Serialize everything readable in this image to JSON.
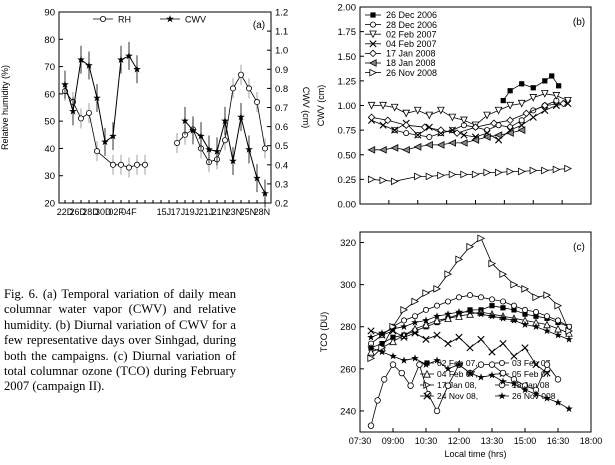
{
  "caption": "Fig. 6. (a) Temporal variation of daily mean columnar water vapor (CWV) and relative humidity. (b) Diurnal variation of CWV for a few representative days over Sinhgad, during both the campaigns. (c) Diurnal variation of total columnar ozone (TCO) during February 2007 (campaign II).",
  "chart_data": [
    {
      "panel_label": "(a)",
      "type": "line",
      "xlabel": "",
      "ylabel": "Relative humidity (%)",
      "y2label": "CWV (cm)",
      "ylim": [
        20,
        90
      ],
      "y2lim": [
        0.2,
        1.2
      ],
      "yticks": [
        20,
        30,
        40,
        50,
        60,
        70,
        80,
        90
      ],
      "y2ticks": [
        0.2,
        0.3,
        0.4,
        0.5,
        0.6,
        0.7,
        0.8,
        0.9,
        1.0,
        1.1,
        1.2
      ],
      "tick_labels": [
        "22D",
        "26D",
        "28D",
        "30D",
        "02F",
        "04F",
        "",
        "15J",
        "17J",
        "19J",
        "21J",
        "21N",
        "23N",
        "25N",
        "28N"
      ],
      "legend": [
        "RH",
        "CWV"
      ],
      "series": [
        {
          "name": "RH",
          "axis": "left",
          "marker": "circle",
          "x": [
            0,
            1,
            2,
            3,
            4,
            6,
            7,
            8,
            9,
            10,
            14,
            15,
            16,
            17,
            18,
            19,
            20,
            21,
            22,
            23,
            24,
            25
          ],
          "y": [
            61,
            57,
            51,
            53,
            39,
            34,
            34,
            33,
            34,
            34,
            42,
            45,
            47,
            40,
            35,
            36,
            43,
            62,
            67,
            62,
            57,
            40
          ]
        },
        {
          "name": "CWV",
          "axis": "right",
          "marker": "star",
          "x": [
            0,
            1,
            2,
            3,
            4,
            5,
            6,
            7,
            8,
            9,
            15,
            16,
            17,
            18,
            19,
            20,
            21,
            22,
            23,
            24,
            25
          ],
          "y": [
            0.82,
            0.68,
            0.95,
            0.92,
            0.75,
            0.52,
            0.55,
            0.95,
            0.97,
            0.9,
            0.63,
            0.58,
            0.55,
            0.48,
            0.47,
            0.63,
            0.42,
            0.65,
            0.48,
            0.33,
            0.25
          ]
        }
      ]
    },
    {
      "panel_label": "(b)",
      "type": "line",
      "xlabel": "",
      "ylabel": "CWV (cm)",
      "ylim": [
        0.0,
        2.0
      ],
      "yticks": [
        0.0,
        0.25,
        0.5,
        0.75,
        1.0,
        1.25,
        1.5,
        1.75,
        2.0
      ],
      "series": [
        {
          "name": "26 Dec 2006",
          "marker": "square",
          "x": [
            0.62,
            0.65,
            0.7,
            0.75,
            0.8,
            0.83,
            0.86
          ],
          "y": [
            1.05,
            1.15,
            1.22,
            1.18,
            1.25,
            1.3,
            1.2
          ]
        },
        {
          "name": "28 Dec 2006",
          "marker": "circle",
          "x": [
            0.15,
            0.2,
            0.25,
            0.3,
            0.35,
            0.4,
            0.45,
            0.5,
            0.55,
            0.6,
            0.65,
            0.7,
            0.75,
            0.8,
            0.85
          ],
          "y": [
            0.75,
            0.72,
            0.7,
            0.68,
            0.72,
            0.75,
            0.8,
            0.78,
            0.75,
            0.8,
            0.78,
            0.85,
            0.95,
            1.0,
            1.05
          ]
        },
        {
          "name": "02 Feb 2007",
          "marker": "triangle-down",
          "x": [
            0.05,
            0.1,
            0.15,
            0.2,
            0.25,
            0.3,
            0.35,
            0.4,
            0.45,
            0.5,
            0.55,
            0.6,
            0.65,
            0.7,
            0.75,
            0.8,
            0.85,
            0.9
          ],
          "y": [
            1.0,
            1.0,
            0.98,
            0.92,
            0.95,
            0.9,
            0.95,
            0.88,
            0.85,
            0.8,
            0.9,
            0.95,
            1.0,
            1.02,
            1.08,
            1.12,
            1.1,
            1.05
          ]
        },
        {
          "name": "04 Feb 2007",
          "marker": "x",
          "x": [
            0.05,
            0.1,
            0.15,
            0.2,
            0.25,
            0.3,
            0.35,
            0.4,
            0.45,
            0.5,
            0.55,
            0.6,
            0.65,
            0.7,
            0.75,
            0.8,
            0.85,
            0.9
          ],
          "y": [
            0.85,
            0.8,
            0.75,
            0.82,
            0.7,
            0.78,
            0.72,
            0.75,
            0.7,
            0.68,
            0.72,
            0.65,
            0.75,
            0.8,
            0.88,
            0.95,
            1.0,
            1.02
          ]
        },
        {
          "name": "17 Jan 2008",
          "marker": "diamond",
          "x": [
            0.05,
            0.12,
            0.2,
            0.28,
            0.35,
            0.42,
            0.5,
            0.58,
            0.65,
            0.72,
            0.8,
            0.88
          ],
          "y": [
            0.88,
            0.85,
            0.8,
            0.78,
            0.75,
            0.72,
            0.78,
            0.82,
            0.85,
            0.92,
            1.0,
            1.02
          ]
        },
        {
          "name": "18 Jan 2008",
          "marker": "triangle-left",
          "x": [
            0.05,
            0.1,
            0.15,
            0.2,
            0.25,
            0.3,
            0.35,
            0.4,
            0.45,
            0.5,
            0.55,
            0.6,
            0.65,
            0.7
          ],
          "y": [
            0.55,
            0.55,
            0.57,
            0.55,
            0.58,
            0.6,
            0.6,
            0.62,
            0.62,
            0.65,
            0.68,
            0.7,
            0.72,
            0.75
          ]
        },
        {
          "name": "26 Nov 2008",
          "marker": "triangle-right",
          "x": [
            0.05,
            0.1,
            0.15,
            0.25,
            0.3,
            0.35,
            0.4,
            0.45,
            0.5,
            0.55,
            0.6,
            0.65,
            0.7,
            0.75,
            0.8,
            0.85,
            0.9
          ],
          "y": [
            0.25,
            0.24,
            0.23,
            0.28,
            0.28,
            0.29,
            0.3,
            0.3,
            0.3,
            0.32,
            0.32,
            0.33,
            0.33,
            0.34,
            0.34,
            0.35,
            0.36
          ]
        }
      ]
    },
    {
      "panel_label": "(c)",
      "type": "line",
      "xlabel": "Local time (hrs)",
      "ylabel": "TCO (DU)",
      "ylim": [
        230,
        325
      ],
      "yticks": [
        240,
        260,
        280,
        300,
        320
      ],
      "xticks": [
        "07:30",
        "09:00",
        "10:30",
        "12:00",
        "13:30",
        "15:00",
        "16:30",
        "18:00"
      ],
      "xlim_hours": [
        7.5,
        18.0
      ],
      "series": [
        {
          "name": "02 Feb 07",
          "marker": "square",
          "x": [
            8,
            8.5,
            9,
            9.5,
            10,
            10.5,
            11,
            11.5,
            12,
            12.5,
            13,
            13.5,
            14,
            14.5,
            15,
            15.5,
            16,
            16.5,
            17
          ],
          "y": [
            270,
            272,
            275,
            276,
            278,
            280,
            282,
            284,
            286,
            288,
            288,
            290,
            289,
            288,
            286,
            285,
            284,
            282,
            280
          ]
        },
        {
          "name": "03 Feb 07",
          "marker": "circle",
          "x": [
            8,
            8.5,
            9,
            9.5,
            10,
            10.5,
            11,
            11.5,
            12,
            12.5,
            13,
            13.5,
            14,
            14.5,
            15,
            15.5,
            16,
            16.5,
            17
          ],
          "y": [
            272,
            276,
            280,
            283,
            285,
            288,
            290,
            292,
            294,
            295,
            294,
            293,
            292,
            290,
            288,
            287,
            285,
            283,
            280
          ]
        },
        {
          "name": "04 Feb 07",
          "marker": "triangle-up",
          "x": [
            8,
            8.5,
            9,
            9.5,
            10,
            10.5,
            11,
            11.5,
            12,
            12.5,
            13,
            13.5,
            14,
            14.5,
            15,
            15.5,
            16,
            16.5,
            17
          ],
          "y": [
            268,
            270,
            273,
            276,
            279,
            281,
            283,
            284,
            285,
            286,
            287,
            286,
            285,
            284,
            283,
            282,
            281,
            279,
            277
          ]
        },
        {
          "name": "05 Feb 07",
          "marker": "star",
          "x": [
            8,
            8.5,
            9,
            9.5,
            10,
            10.5,
            11,
            11.5,
            12,
            12.5,
            13,
            13.5,
            14,
            14.5,
            15,
            15.5,
            16,
            16.5,
            17
          ],
          "y": [
            275,
            277,
            279,
            280,
            282,
            283,
            285,
            286,
            287,
            287,
            286,
            285,
            284,
            283,
            281,
            280,
            278,
            276,
            274
          ]
        },
        {
          "name": "17 Jan 08",
          "marker": "triangle-right",
          "x": [
            8,
            8.5,
            9,
            9.5,
            10,
            10.5,
            11,
            11.5,
            12,
            12.5,
            13,
            13.5,
            14,
            14.5,
            15,
            15.5,
            16,
            16.5,
            17
          ],
          "y": [
            265,
            270,
            280,
            288,
            292,
            296,
            298,
            305,
            312,
            318,
            322,
            310,
            305,
            300,
            298,
            294,
            295,
            290,
            278
          ]
        },
        {
          "name": "18 Jan 08",
          "marker": "circle-open",
          "x": [
            8,
            8.3,
            8.6,
            9,
            9.4,
            9.8,
            10.2,
            10.6,
            11,
            11.5,
            12,
            12.5,
            13,
            13.5,
            14,
            14.5,
            15,
            15.5,
            16,
            16.5
          ],
          "y": [
            233,
            245,
            255,
            262,
            258,
            252,
            262,
            248,
            240,
            252,
            262,
            258,
            262,
            262,
            258,
            255,
            252,
            250,
            262,
            255
          ]
        },
        {
          "name": "24 Nov 08",
          "marker": "x",
          "x": [
            8,
            8.5,
            9,
            9.5,
            10,
            10.5,
            11,
            11.5,
            12,
            12.5,
            13,
            13.5,
            14,
            14.5,
            15,
            15.5,
            16
          ],
          "y": [
            278,
            276,
            278,
            275,
            277,
            274,
            276,
            272,
            275,
            270,
            274,
            268,
            272,
            266,
            270,
            262,
            258
          ]
        },
        {
          "name": "26 Nov 008",
          "marker": "star",
          "x": [
            8,
            8.5,
            9,
            9.5,
            10,
            10.5,
            11,
            11.5,
            12,
            12.5,
            13,
            13.5,
            14,
            14.5,
            15,
            15.5,
            16,
            16.5,
            17
          ],
          "y": [
            270,
            268,
            266,
            264,
            265,
            262,
            264,
            260,
            262,
            258,
            256,
            257,
            254,
            253,
            250,
            248,
            246,
            244,
            241
          ]
        }
      ]
    }
  ]
}
